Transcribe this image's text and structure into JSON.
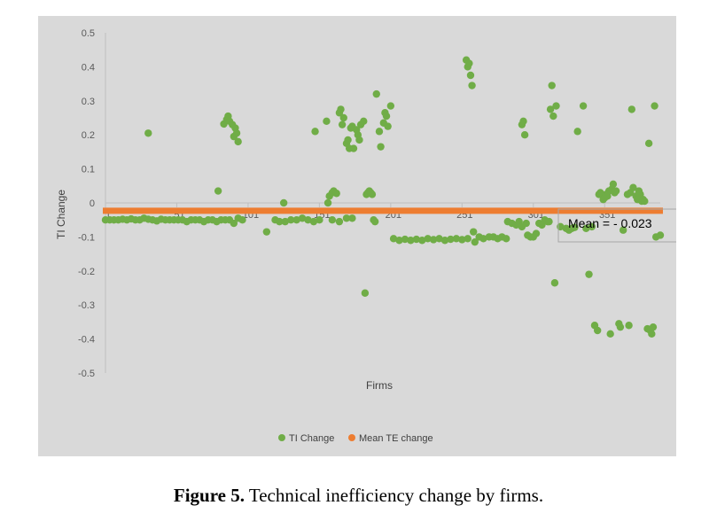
{
  "chart_data": {
    "type": "scatter",
    "xlabel": "Firms",
    "ylabel": "TI Change",
    "xlim": [
      1,
      390
    ],
    "ylim": [
      -0.5,
      0.5
    ],
    "x_ticks": [
      "1",
      "51",
      "101",
      "151",
      "201",
      "251",
      "301",
      "351"
    ],
    "x_tick_values": [
      1,
      51,
      101,
      151,
      201,
      251,
      301,
      351
    ],
    "y_ticks": [
      "0.5",
      "0.4",
      "0.3",
      "0.2",
      "0.1",
      "0",
      "-0.1",
      "-0.2",
      "-0.3",
      "-0.4",
      "-0.5"
    ],
    "y_tick_values": [
      0.5,
      0.4,
      0.3,
      0.2,
      0.1,
      0,
      -0.1,
      -0.2,
      -0.3,
      -0.4,
      -0.5
    ],
    "legend_position": "bottom",
    "grid": false,
    "series": [
      {
        "name": "TI Change",
        "color": "#70ad47",
        "points": [
          [
            1,
            -0.05
          ],
          [
            4,
            -0.05
          ],
          [
            7,
            -0.05
          ],
          [
            10,
            -0.05
          ],
          [
            13,
            -0.048
          ],
          [
            16,
            -0.05
          ],
          [
            19,
            -0.047
          ],
          [
            22,
            -0.05
          ],
          [
            25,
            -0.05
          ],
          [
            28,
            -0.045
          ],
          [
            31,
            -0.048
          ],
          [
            34,
            -0.05
          ],
          [
            37,
            -0.053
          ],
          [
            40,
            -0.048
          ],
          [
            43,
            -0.05
          ],
          [
            46,
            -0.05
          ],
          [
            49,
            -0.05
          ],
          [
            52,
            -0.05
          ],
          [
            55,
            -0.05
          ],
          [
            58,
            -0.055
          ],
          [
            61,
            -0.05
          ],
          [
            64,
            -0.05
          ],
          [
            67,
            -0.05
          ],
          [
            70,
            -0.055
          ],
          [
            73,
            -0.05
          ],
          [
            76,
            -0.05
          ],
          [
            79,
            -0.055
          ],
          [
            82,
            -0.05
          ],
          [
            85,
            -0.05
          ],
          [
            88,
            -0.05
          ],
          [
            91,
            -0.06
          ],
          [
            94,
            -0.045
          ],
          [
            97,
            -0.05
          ],
          [
            31,
            0.205
          ],
          [
            80,
            0.035
          ],
          [
            84,
            0.232
          ],
          [
            86,
            0.245
          ],
          [
            87,
            0.255
          ],
          [
            88,
            0.24
          ],
          [
            90,
            0.23
          ],
          [
            91,
            0.195
          ],
          [
            92,
            0.22
          ],
          [
            93,
            0.205
          ],
          [
            94,
            0.18
          ],
          [
            114,
            -0.085
          ],
          [
            120,
            -0.05
          ],
          [
            123,
            -0.055
          ],
          [
            127,
            -0.055
          ],
          [
            131,
            -0.05
          ],
          [
            135,
            -0.05
          ],
          [
            139,
            -0.045
          ],
          [
            143,
            -0.05
          ],
          [
            147,
            -0.055
          ],
          [
            151,
            -0.05
          ],
          [
            160,
            -0.05
          ],
          [
            165,
            -0.055
          ],
          [
            170,
            -0.045
          ],
          [
            174,
            -0.045
          ],
          [
            126,
            0.0
          ],
          [
            148,
            0.21
          ],
          [
            156,
            0.24
          ],
          [
            157,
            0.0
          ],
          [
            158,
            0.02
          ],
          [
            160,
            0.03
          ],
          [
            161,
            0.035
          ],
          [
            163,
            0.028
          ],
          [
            165,
            0.265
          ],
          [
            166,
            0.275
          ],
          [
            167,
            0.23
          ],
          [
            168,
            0.25
          ],
          [
            170,
            0.175
          ],
          [
            171,
            0.185
          ],
          [
            172,
            0.16
          ],
          [
            173,
            0.22
          ],
          [
            174,
            0.225
          ],
          [
            175,
            0.16
          ],
          [
            177,
            0.215
          ],
          [
            178,
            0.2
          ],
          [
            179,
            0.185
          ],
          [
            180,
            0.23
          ],
          [
            182,
            0.24
          ],
          [
            183,
            -0.265
          ],
          [
            184,
            0.025
          ],
          [
            185,
            0.03
          ],
          [
            186,
            0.035
          ],
          [
            187,
            0.03
          ],
          [
            188,
            0.025
          ],
          [
            189,
            -0.05
          ],
          [
            190,
            -0.055
          ],
          [
            191,
            0.32
          ],
          [
            193,
            0.21
          ],
          [
            194,
            0.165
          ],
          [
            196,
            0.235
          ],
          [
            197,
            0.265
          ],
          [
            198,
            0.255
          ],
          [
            199,
            0.225
          ],
          [
            201,
            0.285
          ],
          [
            203,
            -0.105
          ],
          [
            207,
            -0.11
          ],
          [
            211,
            -0.107
          ],
          [
            215,
            -0.11
          ],
          [
            219,
            -0.107
          ],
          [
            223,
            -0.11
          ],
          [
            227,
            -0.105
          ],
          [
            231,
            -0.108
          ],
          [
            235,
            -0.105
          ],
          [
            239,
            -0.11
          ],
          [
            243,
            -0.107
          ],
          [
            247,
            -0.105
          ],
          [
            251,
            -0.108
          ],
          [
            255,
            -0.105
          ],
          [
            254,
            0.42
          ],
          [
            255,
            0.4
          ],
          [
            256,
            0.41
          ],
          [
            257,
            0.375
          ],
          [
            258,
            0.345
          ],
          [
            259,
            -0.085
          ],
          [
            260,
            -0.115
          ],
          [
            263,
            -0.1
          ],
          [
            266,
            -0.105
          ],
          [
            270,
            -0.1
          ],
          [
            273,
            -0.1
          ],
          [
            276,
            -0.105
          ],
          [
            279,
            -0.1
          ],
          [
            282,
            -0.105
          ],
          [
            283,
            -0.055
          ],
          [
            286,
            -0.06
          ],
          [
            289,
            -0.065
          ],
          [
            291,
            -0.055
          ],
          [
            293,
            -0.07
          ],
          [
            296,
            -0.06
          ],
          [
            293,
            0.23
          ],
          [
            294,
            0.24
          ],
          [
            295,
            0.2
          ],
          [
            297,
            -0.095
          ],
          [
            299,
            -0.1
          ],
          [
            301,
            -0.1
          ],
          [
            303,
            -0.09
          ],
          [
            305,
            -0.06
          ],
          [
            307,
            -0.065
          ],
          [
            309,
            -0.05
          ],
          [
            311,
            -0.055
          ],
          [
            312,
            -0.055
          ],
          [
            313,
            0.275
          ],
          [
            314,
            0.345
          ],
          [
            315,
            0.255
          ],
          [
            317,
            0.285
          ],
          [
            316,
            -0.235
          ],
          [
            320,
            -0.07
          ],
          [
            324,
            -0.075
          ],
          [
            326,
            -0.08
          ],
          [
            328,
            -0.075
          ],
          [
            330,
            -0.072
          ],
          [
            332,
            0.21
          ],
          [
            336,
            0.285
          ],
          [
            338,
            -0.075
          ],
          [
            340,
            -0.21
          ],
          [
            342,
            -0.07
          ],
          [
            344,
            -0.36
          ],
          [
            346,
            -0.375
          ],
          [
            347,
            0.025
          ],
          [
            348,
            0.03
          ],
          [
            350,
            0.01
          ],
          [
            351,
            0.015
          ],
          [
            352,
            0.025
          ],
          [
            353,
            0.02
          ],
          [
            354,
            0.035
          ],
          [
            356,
            0.04
          ],
          [
            357,
            0.055
          ],
          [
            358,
            0.03
          ],
          [
            359,
            0.035
          ],
          [
            355,
            -0.385
          ],
          [
            361,
            -0.355
          ],
          [
            362,
            -0.365
          ],
          [
            364,
            -0.08
          ],
          [
            367,
            0.025
          ],
          [
            369,
            0.03
          ],
          [
            368,
            -0.36
          ],
          [
            370,
            0.275
          ],
          [
            371,
            0.045
          ],
          [
            373,
            0.02
          ],
          [
            374,
            0.01
          ],
          [
            375,
            0.035
          ],
          [
            376,
            0.025
          ],
          [
            377,
            0.005
          ],
          [
            378,
            0.01
          ],
          [
            379,
            0.005
          ],
          [
            381,
            -0.37
          ],
          [
            383,
            -0.375
          ],
          [
            384,
            -0.385
          ],
          [
            385,
            -0.365
          ],
          [
            382,
            0.175
          ],
          [
            386,
            0.285
          ],
          [
            387,
            -0.1
          ],
          [
            390,
            -0.095
          ]
        ]
      },
      {
        "name": "Mean TE change",
        "color": "#ed7d31",
        "mean_value": -0.023,
        "x_range": [
          1,
          390
        ]
      }
    ],
    "annotation": "Mean = - 0.023"
  },
  "caption": {
    "label": "Figure 5.",
    "text": " Technical inefficiency change by firms."
  }
}
